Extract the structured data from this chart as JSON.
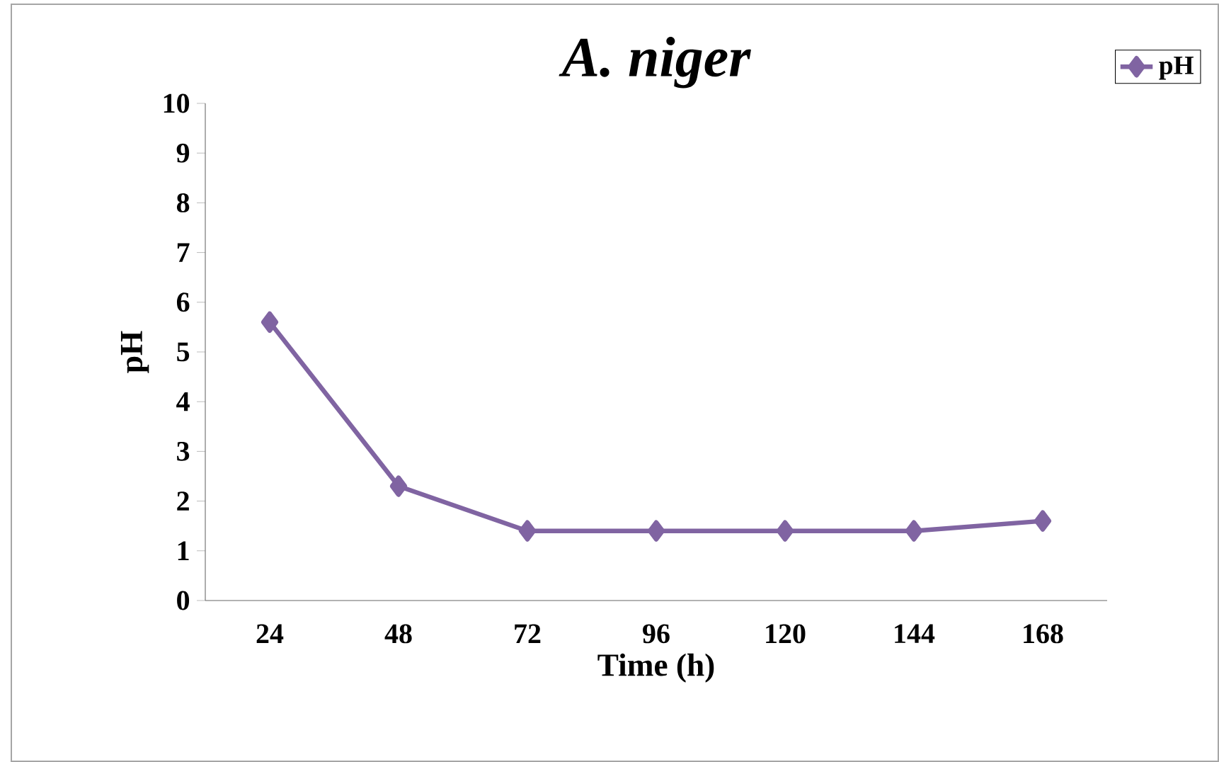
{
  "chart_data": {
    "type": "line",
    "title": "A. niger",
    "xlabel": "Time (h)",
    "ylabel": "pH",
    "categories": [
      "24",
      "48",
      "72",
      "96",
      "120",
      "144",
      "168"
    ],
    "series": [
      {
        "name": "pH",
        "color": "#8064a2",
        "values": [
          5.6,
          2.3,
          1.4,
          1.4,
          1.4,
          1.4,
          1.6
        ]
      }
    ],
    "ylim": [
      0,
      10
    ],
    "yticks": [
      0,
      1,
      2,
      3,
      4,
      5,
      6,
      7,
      8,
      9,
      10
    ],
    "marker": "diamond",
    "line_style": "solid",
    "legend": "top right",
    "grid": false
  }
}
